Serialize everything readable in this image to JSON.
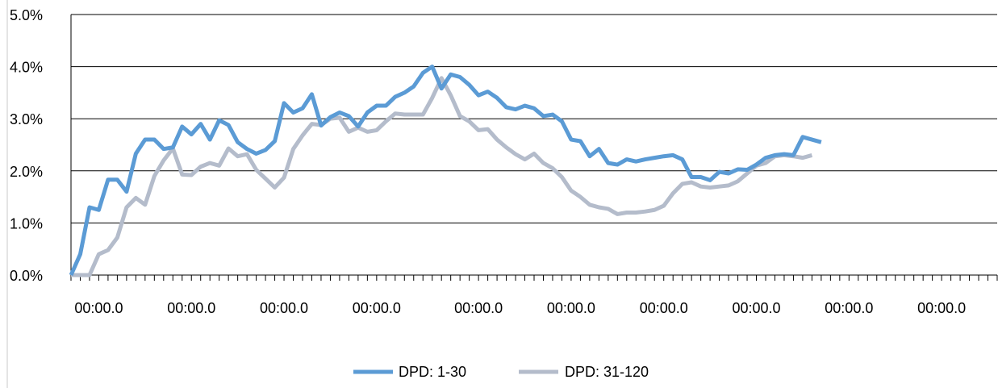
{
  "chart_data": {
    "type": "line",
    "title": "",
    "xlabel": "",
    "ylabel": "",
    "ylim": [
      0,
      0.05
    ],
    "y_ticks": [
      "0.0%",
      "1.0%",
      "2.0%",
      "3.0%",
      "4.0%",
      "5.0%"
    ],
    "x_tick_labels": [
      "00:00.0",
      "00:00.0",
      "00:00.0",
      "00:00.0",
      "00:00.0",
      "00:00.0",
      "00:00.0",
      "00:00.0",
      "00:00.0",
      "00:00.0"
    ],
    "x_tick_label_indices": [
      3,
      13,
      23,
      33,
      44,
      54,
      64,
      74,
      84,
      94
    ],
    "x_count": 101,
    "grid": "horizontal",
    "legend_position": "bottom",
    "colors": {
      "series1": "#5B9BD5",
      "series2": "#B4BCCB",
      "grid": "#000000",
      "axis": "#000000",
      "left_border": "#C0C0C0"
    },
    "series": [
      {
        "name": "DPD: 1-30",
        "values": [
          0.0,
          0.004,
          0.013,
          0.0125,
          0.0183,
          0.0183,
          0.016,
          0.0233,
          0.026,
          0.026,
          0.0242,
          0.0245,
          0.0285,
          0.027,
          0.029,
          0.026,
          0.0297,
          0.0288,
          0.0255,
          0.0242,
          0.0233,
          0.024,
          0.0257,
          0.033,
          0.0312,
          0.032,
          0.0347,
          0.0287,
          0.0303,
          0.0312,
          0.0305,
          0.0285,
          0.0312,
          0.0325,
          0.0325,
          0.0342,
          0.035,
          0.0362,
          0.0388,
          0.04,
          0.0358,
          0.0385,
          0.038,
          0.0365,
          0.0345,
          0.0352,
          0.034,
          0.0322,
          0.0318,
          0.0325,
          0.032,
          0.0305,
          0.0308,
          0.0295,
          0.026,
          0.0257,
          0.0228,
          0.0242,
          0.0215,
          0.0212,
          0.0222,
          0.0218,
          0.0222,
          0.0225,
          0.0228,
          0.023,
          0.0222,
          0.0188,
          0.0188,
          0.0182,
          0.0198,
          0.0195,
          0.0203,
          0.0202,
          0.0212,
          0.0225,
          0.023,
          0.0232,
          0.023,
          0.0265,
          0.026,
          0.0255
        ]
      },
      {
        "name": "DPD: 31-120",
        "values": [
          0.0,
          0.0,
          0.0,
          0.004,
          0.0048,
          0.0072,
          0.013,
          0.0148,
          0.0135,
          0.019,
          0.022,
          0.0243,
          0.0193,
          0.0192,
          0.0208,
          0.0215,
          0.021,
          0.0243,
          0.0228,
          0.0232,
          0.0202,
          0.0185,
          0.0168,
          0.0187,
          0.0242,
          0.0268,
          0.029,
          0.0288,
          0.03,
          0.0302,
          0.0275,
          0.0283,
          0.0275,
          0.0278,
          0.0295,
          0.031,
          0.0308,
          0.0308,
          0.0308,
          0.034,
          0.0378,
          0.0345,
          0.0305,
          0.0295,
          0.0278,
          0.028,
          0.026,
          0.0245,
          0.0232,
          0.0222,
          0.0233,
          0.0215,
          0.0205,
          0.0188,
          0.0162,
          0.015,
          0.0135,
          0.013,
          0.0127,
          0.0117,
          0.012,
          0.012,
          0.0122,
          0.0125,
          0.0133,
          0.0157,
          0.0175,
          0.0178,
          0.017,
          0.0168,
          0.017,
          0.0172,
          0.018,
          0.0195,
          0.021,
          0.0215,
          0.0228,
          0.023,
          0.0228,
          0.0225,
          0.023
        ]
      }
    ]
  }
}
